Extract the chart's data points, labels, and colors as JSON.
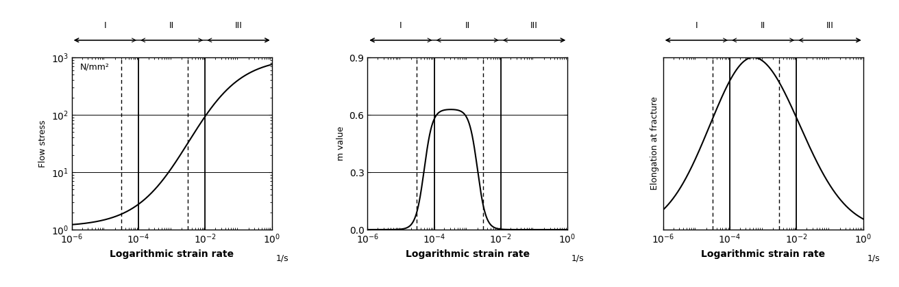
{
  "xlim": [
    1e-06,
    1.0
  ],
  "xlabel": "Logarithmic strain rate",
  "xlabel_fontsize": 10,
  "xlabel_fontweight": "bold",
  "plot1": {
    "ylabel": "Flow stress",
    "ylabel_fontsize": 9,
    "unit_label": "N/mm²"
  },
  "plot2": {
    "ylabel": "m value",
    "ylabel_fontsize": 9,
    "ylim": [
      0,
      0.9
    ],
    "yticks": [
      0,
      0.3,
      0.6,
      0.9
    ]
  },
  "plot3": {
    "ylabel": "Elongation at fracture",
    "ylabel_fontsize": 9,
    "ylim": [
      0,
      1
    ]
  },
  "vline1_solid": 0.0001,
  "vline2_solid": 0.01,
  "vline1_dashed": 3e-05,
  "vline2_dashed": 0.003,
  "log_boundaries": [
    -6,
    -4,
    -2,
    0
  ],
  "region_labels": [
    "I",
    "II",
    "III"
  ],
  "unit_suffix": "1/s",
  "background_color": "#ffffff"
}
